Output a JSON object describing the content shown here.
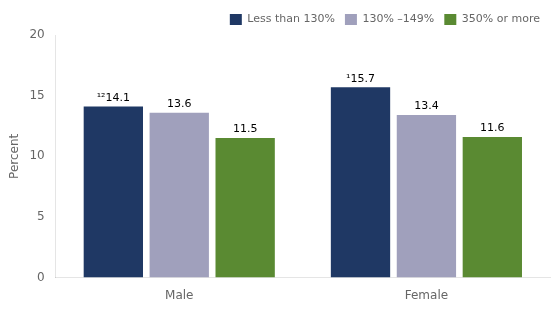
{
  "chart_data": {
    "type": "bar",
    "categories": [
      "Male",
      "Female"
    ],
    "series": [
      {
        "name": "Less than 130%",
        "color": "#1f3864",
        "values": [
          14.1,
          15.7
        ],
        "value_labels": [
          "¹²14.1",
          "¹15.7"
        ]
      },
      {
        "name": "130% –149%",
        "color": "#a0a0bc",
        "values": [
          13.6,
          13.4
        ],
        "value_labels": [
          "13.6",
          "13.4"
        ]
      },
      {
        "name": "350% or more",
        "color": "#5a8a32",
        "values": [
          11.5,
          11.6
        ],
        "value_labels": [
          "11.5",
          "11.6"
        ]
      }
    ],
    "ylabel": "Percent",
    "ylim": [
      0,
      20
    ],
    "yticks": [
      0,
      5,
      10,
      15,
      20
    ],
    "grid": false,
    "legend": "upper right",
    "data_labels": true
  }
}
